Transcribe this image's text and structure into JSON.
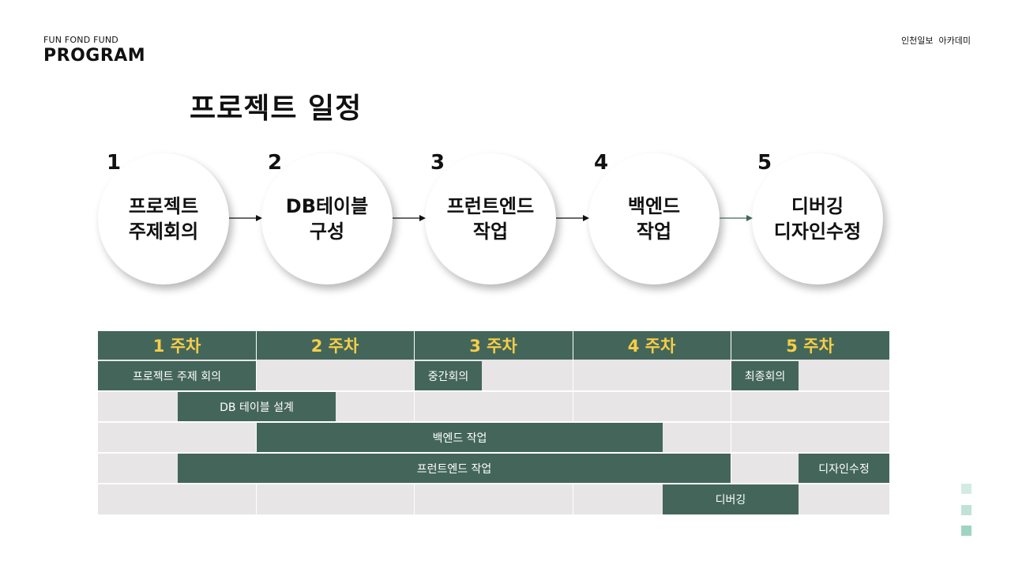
{
  "header": {
    "brand_top": "FUN FOND FUND",
    "brand_bottom": "PROGRAM",
    "academy": "인천일보  아카데미"
  },
  "page_title": "프로젝트 일정",
  "steps": [
    {
      "number": "1",
      "line1": "프로젝트",
      "line2": "주제회의"
    },
    {
      "number": "2",
      "line1": "DB테이블",
      "line2": "구성"
    },
    {
      "number": "3",
      "line1": "프런트엔드",
      "line2": "작업"
    },
    {
      "number": "4",
      "line1": "백엔드",
      "line2": "작업"
    },
    {
      "number": "5",
      "line1": "디버깅",
      "line2": "디자인수정"
    }
  ],
  "gantt": {
    "weeks": [
      "1 주차",
      "2 주차",
      "3 주차",
      "4 주차",
      "5 주차"
    ],
    "tasks": [
      {
        "label": "프로젝트 주제 회의"
      },
      {
        "label": "중간회의"
      },
      {
        "label": "최종회의"
      },
      {
        "label": "DB 테이블 설계"
      },
      {
        "label": "백엔드 작업"
      },
      {
        "label": "프런트엔드 작업"
      },
      {
        "label": "디자인수정"
      },
      {
        "label": "디버깅"
      }
    ]
  },
  "colors": {
    "accent_green": "#44665a",
    "week_label_yellow": "#f7ce47",
    "grid_gray": "#e7e5e6",
    "deco_squares": [
      "#d3ece3",
      "#bfe3d6",
      "#9fd4c1"
    ]
  }
}
